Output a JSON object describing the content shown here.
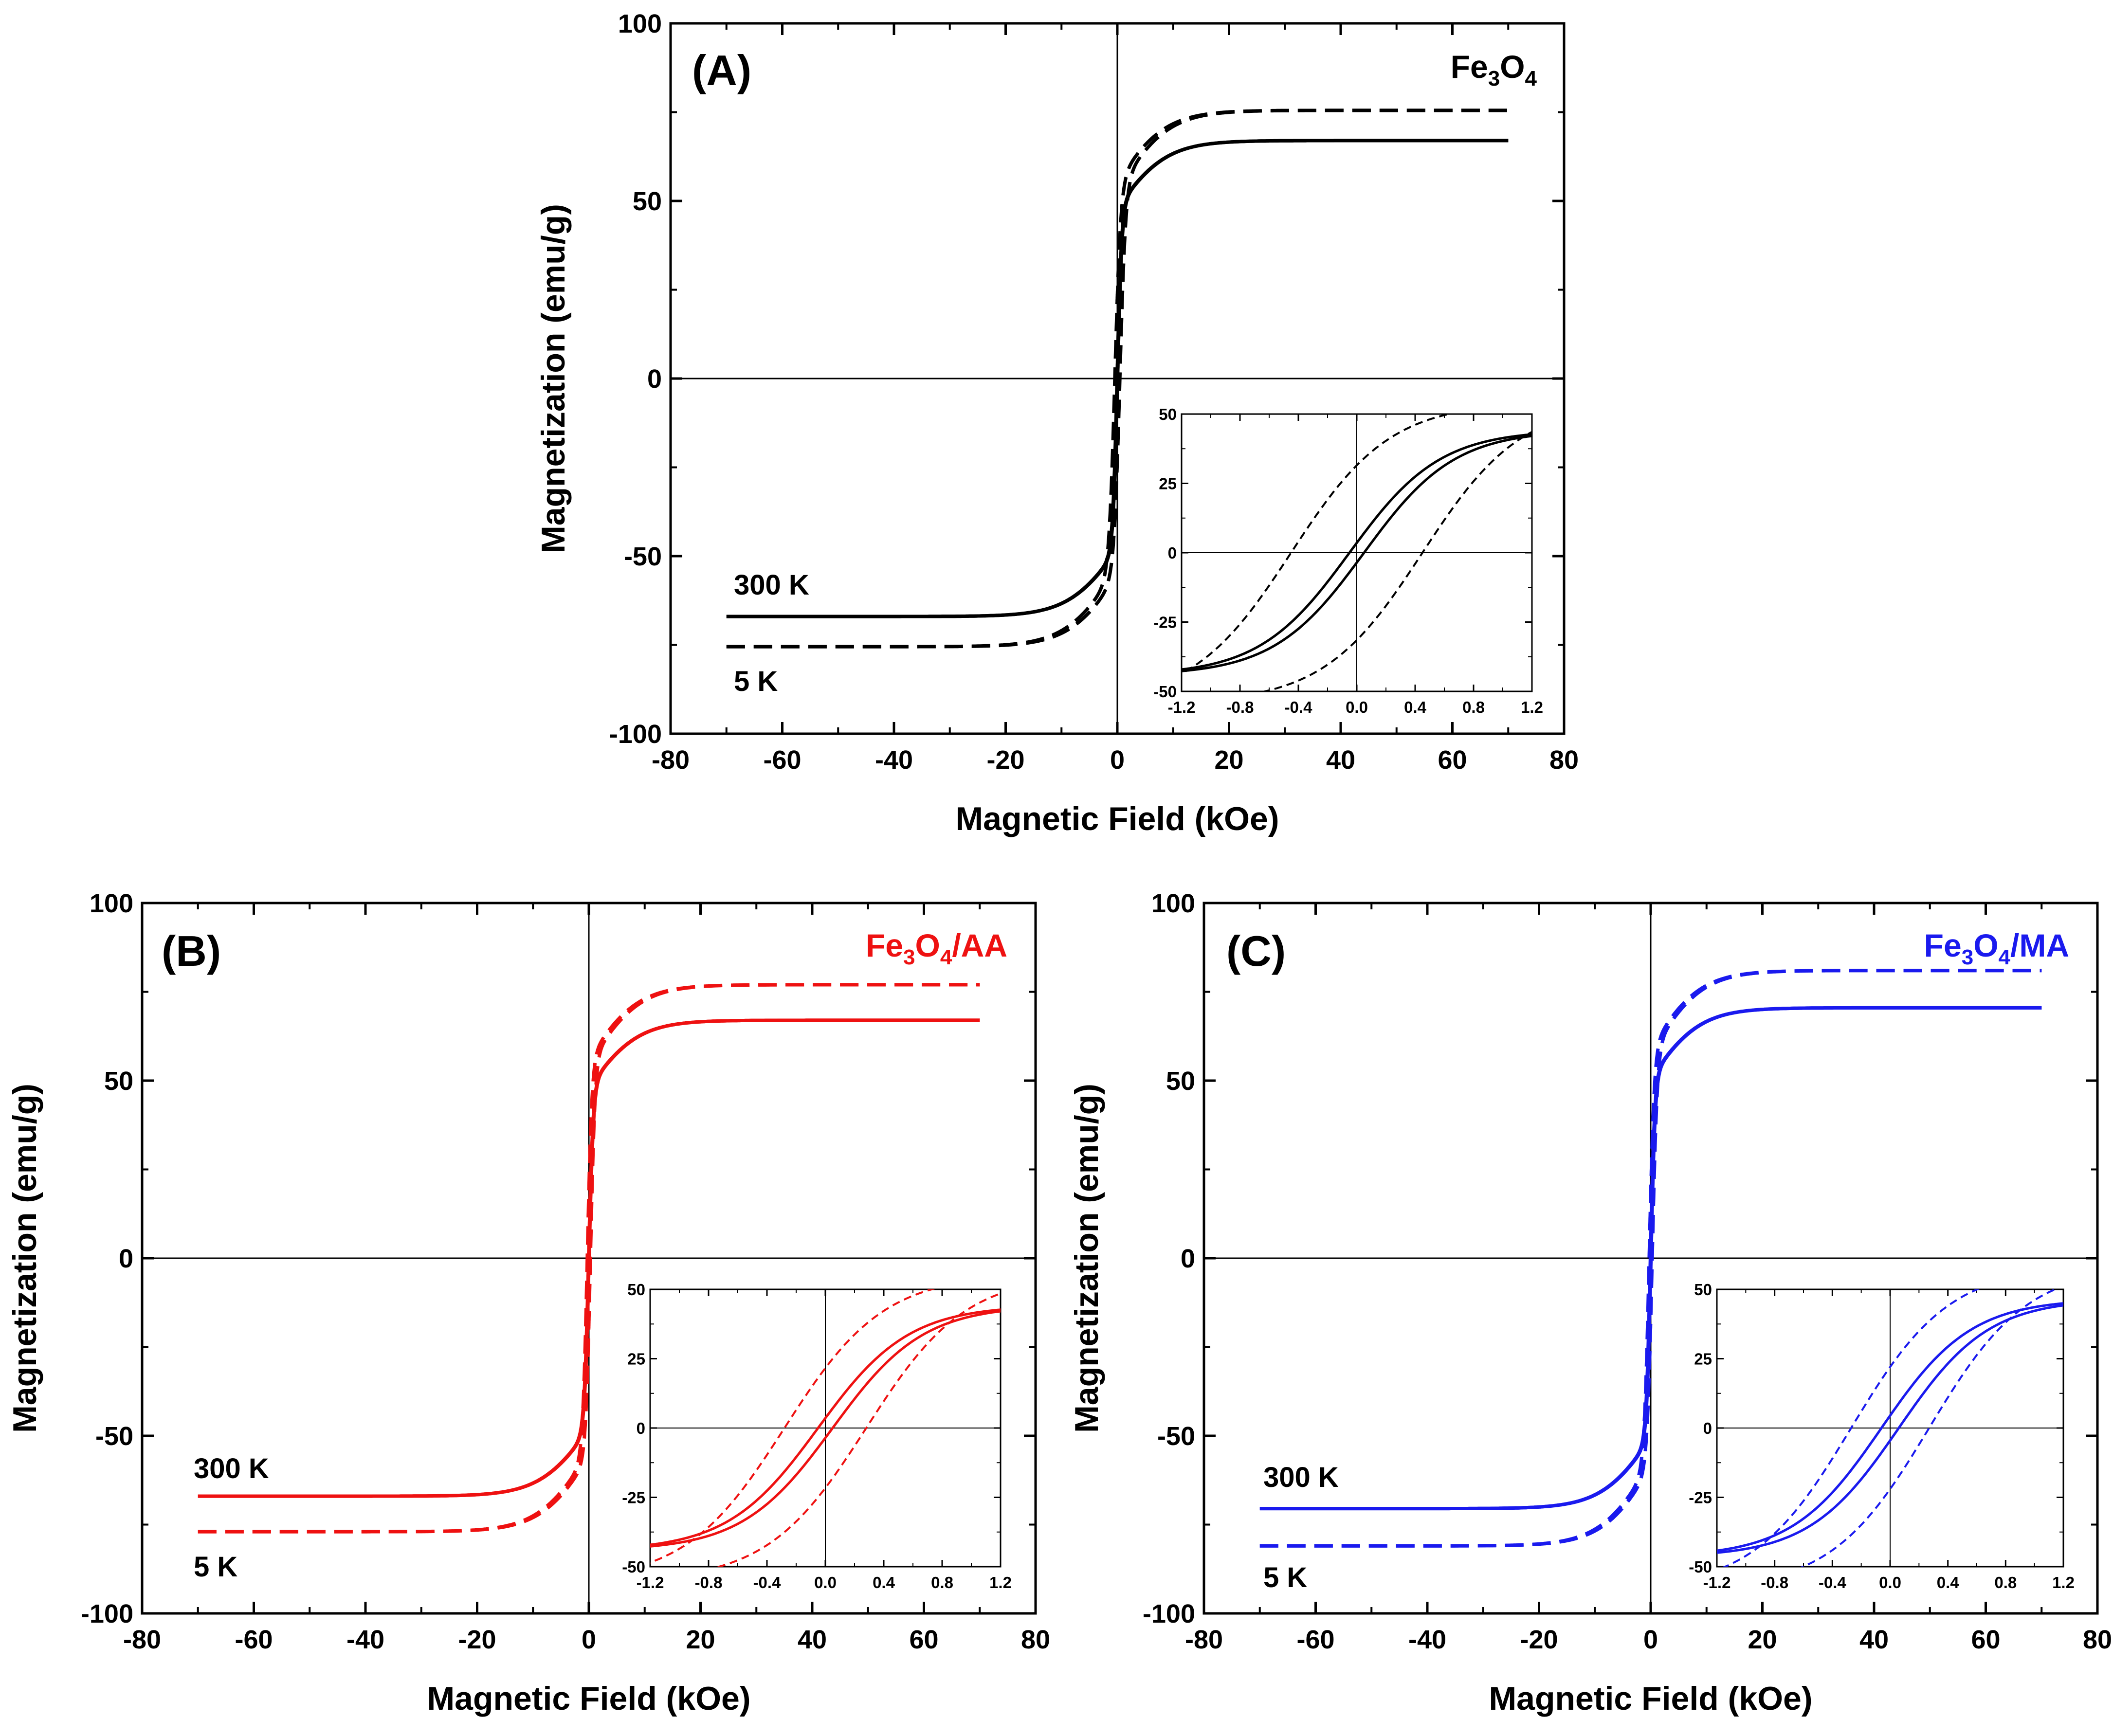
{
  "chart_data": [
    {
      "type": "line",
      "panel_label": "(A)",
      "compound": {
        "base": "Fe",
        "sub1": "3",
        "mid": "O",
        "sub2": "4",
        "suffix": ""
      },
      "color": "#000000",
      "xlabel": "Magnetic Field (kOe)",
      "ylabel": "Magnetization (emu/g)",
      "xlim": [
        -80,
        80
      ],
      "ylim": [
        -100,
        100
      ],
      "xticks": [
        -80,
        -60,
        -40,
        -20,
        0,
        20,
        40,
        60,
        80
      ],
      "yticks": [
        -100,
        -50,
        0,
        50,
        100
      ],
      "temp_labels": [
        "300 K",
        "5 K"
      ],
      "series": [
        {
          "name": "300 K",
          "style": "solid",
          "Ms": 67,
          "Mr": 3,
          "Hc": 0.05,
          "field_range": [
            -70,
            70
          ]
        },
        {
          "name": "5 K",
          "style": "dashed",
          "Ms": 75.5,
          "Mr": 22,
          "Hc": 0.45,
          "field_range": [
            -70,
            70
          ]
        }
      ],
      "inset": {
        "xlim": [
          -1.2,
          1.2
        ],
        "ylim": [
          -50,
          50
        ],
        "xticks": [
          -1.2,
          -0.8,
          -0.4,
          0.0,
          0.4,
          0.8,
          1.2
        ],
        "yticks": [
          -50,
          -25,
          0,
          25,
          50
        ],
        "xtick_labels": [
          "-1.2",
          "-0.8",
          "-0.4",
          "0.0",
          "0.4",
          "0.8",
          "1.2"
        ],
        "ytick_labels": [
          "-50",
          "-25",
          "0",
          "25",
          "50"
        ]
      }
    },
    {
      "type": "line",
      "panel_label": "(B)",
      "compound": {
        "base": "Fe",
        "sub1": "3",
        "mid": "O",
        "sub2": "4",
        "suffix": "/AA"
      },
      "color": "#ee1111",
      "xlabel": "Magnetic Field (kOe)",
      "ylabel": "Magnetization (emu/g)",
      "xlim": [
        -80,
        80
      ],
      "ylim": [
        -100,
        100
      ],
      "xticks": [
        -80,
        -60,
        -40,
        -20,
        0,
        20,
        40,
        60,
        80
      ],
      "yticks": [
        -100,
        -50,
        0,
        50,
        100
      ],
      "temp_labels": [
        "300 K",
        "5 K"
      ],
      "series": [
        {
          "name": "300 K",
          "style": "solid",
          "Ms": 67,
          "Mr": 3,
          "Hc": 0.05,
          "field_range": [
            -70,
            70
          ]
        },
        {
          "name": "5 K",
          "style": "dashed",
          "Ms": 77,
          "Mr": 18,
          "Hc": 0.28,
          "field_range": [
            -70,
            70
          ]
        }
      ],
      "inset": {
        "xlim": [
          -1.2,
          1.2
        ],
        "ylim": [
          -50,
          50
        ],
        "xticks": [
          -1.2,
          -0.8,
          -0.4,
          0.0,
          0.4,
          0.8,
          1.2
        ],
        "yticks": [
          -50,
          -25,
          0,
          25,
          50
        ],
        "xtick_labels": [
          "-1.2",
          "-0.8",
          "-0.4",
          "0.0",
          "0.4",
          "0.8",
          "1.2"
        ],
        "ytick_labels": [
          "-50",
          "-25",
          "0",
          "25",
          "50"
        ]
      }
    },
    {
      "type": "line",
      "panel_label": "(C)",
      "compound": {
        "base": "Fe",
        "sub1": "3",
        "mid": "O",
        "sub2": "4",
        "suffix": "/MA"
      },
      "color": "#1a1aee",
      "xlabel": "Magnetic Field (kOe)",
      "ylabel": "Magnetization (emu/g)",
      "xlim": [
        -80,
        80
      ],
      "ylim": [
        -100,
        100
      ],
      "xticks": [
        -80,
        -60,
        -40,
        -20,
        0,
        20,
        40,
        60,
        80
      ],
      "yticks": [
        -100,
        -50,
        0,
        50,
        100
      ],
      "temp_labels": [
        "300 K",
        "5 K"
      ],
      "series": [
        {
          "name": "300 K",
          "style": "solid",
          "Ms": 70.5,
          "Mr": 4,
          "Hc": 0.06,
          "field_range": [
            -70,
            70
          ]
        },
        {
          "name": "5 K",
          "style": "dashed",
          "Ms": 81,
          "Mr": 17,
          "Hc": 0.27,
          "field_range": [
            -70,
            70
          ]
        }
      ],
      "inset": {
        "xlim": [
          -1.2,
          1.2
        ],
        "ylim": [
          -50,
          50
        ],
        "xticks": [
          -1.2,
          -0.8,
          -0.4,
          0.0,
          0.4,
          0.8,
          1.2
        ],
        "yticks": [
          -50,
          -25,
          0,
          25,
          50
        ],
        "xtick_labels": [
          "-1.2",
          "-0.8",
          "-0.4",
          "0.0",
          "0.4",
          "0.8",
          "1.2"
        ],
        "ytick_labels": [
          "-50",
          "-25",
          "0",
          "25",
          "50"
        ]
      }
    }
  ]
}
